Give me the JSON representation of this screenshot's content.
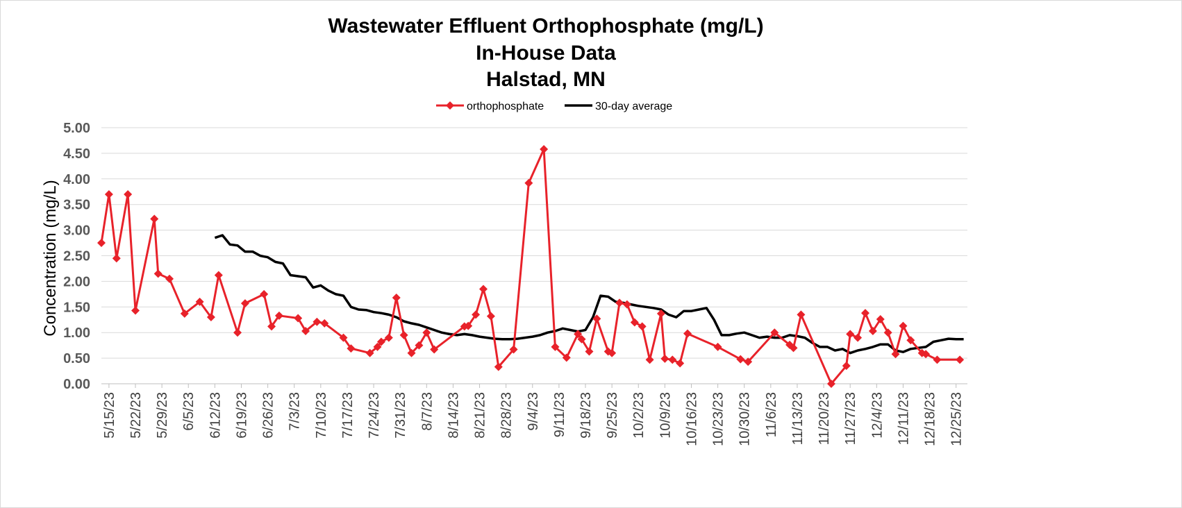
{
  "chart_data": {
    "type": "line",
    "title_lines": [
      "Wastewater Effluent Orthophosphate (mg/L)",
      "In-House Data",
      "Halstad, MN"
    ],
    "ylabel": "Concentration  (mg/L)",
    "xlabel": "",
    "ylim": [
      0,
      5
    ],
    "yticks": [
      "0.00",
      "0.50",
      "1.00",
      "1.50",
      "2.00",
      "2.50",
      "3.00",
      "3.50",
      "4.00",
      "4.50",
      "5.00"
    ],
    "ytick_values": [
      0,
      0.5,
      1,
      1.5,
      2,
      2.5,
      3,
      3.5,
      4,
      4.5,
      5
    ],
    "x_range_days": [
      -2,
      227
    ],
    "x_tick_labels": [
      "5/15/23",
      "5/22/23",
      "5/29/23",
      "6/5/23",
      "6/12/23",
      "6/19/23",
      "6/26/23",
      "7/3/23",
      "7/10/23",
      "7/17/23",
      "7/24/23",
      "7/31/23",
      "8/7/23",
      "8/14/23",
      "8/21/23",
      "8/28/23",
      "9/4/23",
      "9/11/23",
      "9/18/23",
      "9/25/23",
      "10/2/23",
      "10/9/23",
      "10/16/23",
      "10/23/23",
      "10/30/23",
      "11/6/23",
      "11/13/23",
      "11/20/23",
      "11/27/23",
      "12/4/23",
      "12/11/23",
      "12/18/23",
      "12/25/23"
    ],
    "x_tick_days": [
      0,
      7,
      14,
      21,
      28,
      35,
      42,
      49,
      56,
      63,
      70,
      77,
      84,
      91,
      98,
      105,
      112,
      119,
      126,
      133,
      140,
      147,
      154,
      161,
      168,
      175,
      182,
      189,
      196,
      203,
      210,
      217,
      224
    ],
    "grid": true,
    "legend_position": "top-center",
    "series": [
      {
        "name": "orthophosphate",
        "color": "#e8222a",
        "marker": "diamond",
        "x_days": [
          -2,
          0,
          2,
          5,
          7,
          12,
          13,
          16,
          20,
          24,
          27,
          29,
          34,
          36,
          41,
          43,
          45,
          50,
          52,
          55,
          57,
          62,
          64,
          69,
          71,
          72,
          74,
          76,
          78,
          80,
          82,
          84,
          86,
          94,
          95,
          97,
          99,
          101,
          103,
          107,
          111,
          115,
          118,
          121,
          124,
          125,
          127,
          129,
          132,
          133,
          135,
          137,
          139,
          141,
          143,
          146,
          147,
          149,
          151,
          153,
          161,
          167,
          169,
          176,
          180,
          181,
          183,
          191,
          195,
          196,
          198,
          200,
          202,
          204,
          206,
          208,
          210,
          212,
          215,
          216,
          219,
          225
        ],
        "values": [
          2.75,
          3.7,
          2.45,
          3.7,
          1.43,
          3.22,
          2.15,
          2.05,
          1.37,
          1.6,
          1.3,
          2.12,
          1.0,
          1.57,
          1.75,
          1.12,
          1.33,
          1.28,
          1.03,
          1.21,
          1.18,
          0.9,
          0.69,
          0.6,
          0.72,
          0.82,
          0.9,
          1.68,
          0.95,
          0.6,
          0.75,
          1.0,
          0.67,
          1.12,
          1.13,
          1.35,
          1.85,
          1.32,
          0.33,
          0.67,
          3.92,
          4.58,
          0.72,
          0.51,
          0.97,
          0.87,
          0.63,
          1.27,
          0.63,
          0.6,
          1.58,
          1.55,
          1.2,
          1.12,
          0.47,
          1.37,
          0.49,
          0.47,
          0.4,
          0.98,
          0.72,
          0.48,
          0.43,
          1.0,
          0.76,
          0.7,
          1.35,
          0.0,
          0.35,
          0.97,
          0.9,
          1.38,
          1.03,
          1.26,
          1.0,
          0.58,
          1.13,
          0.85,
          0.6,
          0.58,
          0.47,
          0.47
        ]
      },
      {
        "name": "30-day average",
        "color": "#000000",
        "marker": "none",
        "x_days": [
          28,
          30,
          32,
          34,
          36,
          38,
          40,
          42,
          44,
          46,
          48,
          50,
          52,
          54,
          56,
          58,
          60,
          62,
          64,
          66,
          68,
          70,
          72,
          74,
          76,
          78,
          80,
          82,
          84,
          86,
          88,
          90,
          92,
          94,
          96,
          98,
          100,
          102,
          104,
          106,
          108,
          110,
          112,
          114,
          116,
          118,
          120,
          122,
          124,
          126,
          128,
          130,
          132,
          134,
          136,
          138,
          140,
          142,
          144,
          146,
          148,
          150,
          152,
          154,
          156,
          158,
          160,
          162,
          164,
          166,
          168,
          170,
          172,
          174,
          176,
          178,
          180,
          182,
          184,
          186,
          188,
          190,
          192,
          194,
          196,
          198,
          200,
          202,
          204,
          206,
          208,
          210,
          212,
          214,
          216,
          218,
          220,
          222,
          224,
          226
        ],
        "values": [
          2.85,
          2.9,
          2.72,
          2.7,
          2.58,
          2.58,
          2.5,
          2.47,
          2.38,
          2.35,
          2.12,
          2.1,
          2.08,
          1.88,
          1.92,
          1.82,
          1.75,
          1.72,
          1.5,
          1.45,
          1.44,
          1.4,
          1.38,
          1.35,
          1.3,
          1.22,
          1.18,
          1.15,
          1.1,
          1.05,
          1.0,
          0.97,
          0.95,
          0.97,
          0.95,
          0.92,
          0.9,
          0.88,
          0.87,
          0.87,
          0.88,
          0.9,
          0.92,
          0.95,
          1.0,
          1.03,
          1.08,
          1.05,
          1.02,
          1.05,
          1.3,
          1.72,
          1.7,
          1.6,
          1.58,
          1.55,
          1.52,
          1.5,
          1.48,
          1.45,
          1.35,
          1.3,
          1.42,
          1.42,
          1.45,
          1.48,
          1.25,
          0.95,
          0.95,
          0.98,
          1.0,
          0.95,
          0.9,
          0.92,
          0.9,
          0.9,
          0.95,
          0.93,
          0.9,
          0.8,
          0.72,
          0.72,
          0.65,
          0.68,
          0.6,
          0.65,
          0.68,
          0.72,
          0.77,
          0.77,
          0.65,
          0.62,
          0.68,
          0.7,
          0.72,
          0.82,
          0.85,
          0.88,
          0.87,
          0.87
        ]
      }
    ]
  }
}
